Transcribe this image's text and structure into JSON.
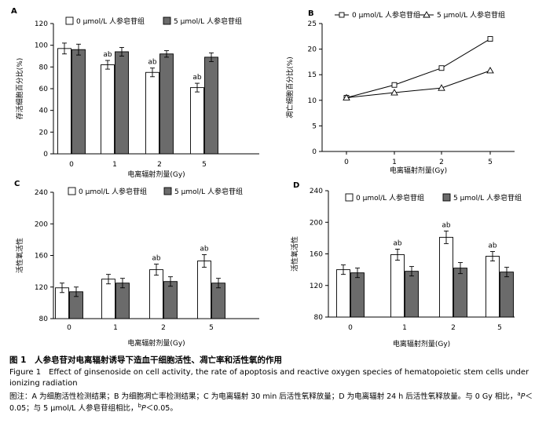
{
  "chart_data": [
    {
      "panel": "A",
      "type": "bar",
      "categories": [
        "0",
        "1",
        "2",
        "5"
      ],
      "series": [
        {
          "name": "0 μmol/L 人参皂苷组",
          "values": [
            97,
            82,
            75,
            61
          ],
          "errors": [
            5,
            4,
            4,
            4
          ],
          "fill": "#ffffff"
        },
        {
          "name": "5 μmol/L 人参皂苷组",
          "values": [
            96,
            94,
            92,
            89
          ],
          "errors": [
            5,
            4,
            3,
            4
          ],
          "fill": "#6b6b6b"
        }
      ],
      "annotations": [
        {
          "category": "1",
          "series": 0,
          "text": "ab"
        },
        {
          "category": "2",
          "series": 0,
          "text": "ab"
        },
        {
          "category": "5",
          "series": 0,
          "text": "ab"
        }
      ],
      "xlabel": "电离辐射剂量(Gy)",
      "ylabel": "存活细胞百分比(%)",
      "ylim": [
        0,
        120
      ],
      "yticks": [
        "0",
        "20",
        "40",
        "60",
        "80",
        "100",
        "120"
      ],
      "legend": "top"
    },
    {
      "panel": "B",
      "type": "line",
      "categories": [
        "0",
        "1",
        "2",
        "5"
      ],
      "series": [
        {
          "name": "0 μmol/L 人参皂苷组",
          "values": [
            10.5,
            13.0,
            16.3,
            22.0
          ],
          "marker": "square"
        },
        {
          "name": "5 μmol/L 人参皂苷组",
          "values": [
            10.5,
            11.5,
            12.4,
            15.8
          ],
          "marker": "triangle"
        }
      ],
      "xlabel": "电离辐射剂量(Gy)",
      "ylabel": "凋亡细胞百分比(%)",
      "ylim": [
        0,
        25
      ],
      "yticks": [
        "0",
        "5",
        "10",
        "15",
        "20",
        "25"
      ],
      "legend": "top"
    },
    {
      "panel": "C",
      "type": "bar",
      "categories": [
        "0",
        "1",
        "2",
        "5"
      ],
      "series": [
        {
          "name": "0 μmol/L 人参皂苷组",
          "values": [
            119,
            130,
            142,
            153
          ],
          "errors": [
            6,
            6,
            7,
            8
          ],
          "fill": "#ffffff"
        },
        {
          "name": "5 μmol/L 人参皂苷组",
          "values": [
            114,
            125,
            127,
            125
          ],
          "errors": [
            6,
            6,
            6,
            6
          ],
          "fill": "#6b6b6b"
        }
      ],
      "annotations": [
        {
          "category": "2",
          "series": 0,
          "text": "ab"
        },
        {
          "category": "5",
          "series": 0,
          "text": "ab"
        }
      ],
      "xlabel": "电离辐射剂量(Gy)",
      "ylabel": "活性氧活性",
      "ylim": [
        80,
        240
      ],
      "yticks": [
        "80",
        "120",
        "160",
        "200",
        "240"
      ],
      "legend": "top"
    },
    {
      "panel": "D",
      "type": "bar",
      "categories": [
        "0",
        "1",
        "2",
        "5"
      ],
      "series": [
        {
          "name": "0 μmol/L 人参皂苷组",
          "values": [
            140,
            159,
            181,
            157
          ],
          "errors": [
            6,
            7,
            8,
            6
          ],
          "fill": "#ffffff"
        },
        {
          "name": "5 μmol/L 人参皂苷组",
          "values": [
            136,
            138,
            142,
            137
          ],
          "errors": [
            6,
            6,
            7,
            6
          ],
          "fill": "#6b6b6b"
        }
      ],
      "annotations": [
        {
          "category": "1",
          "series": 0,
          "text": "ab"
        },
        {
          "category": "2",
          "series": 0,
          "text": "ab"
        },
        {
          "category": "5",
          "series": 0,
          "text": "ab"
        }
      ],
      "xlabel": "电离辐射剂量(Gy)",
      "ylabel": "活性氧活性",
      "ylim": [
        80,
        240
      ],
      "yticks": [
        "80",
        "120",
        "160",
        "200",
        "240"
      ],
      "legend": "top"
    }
  ],
  "caption": {
    "title_cn": "图 1　人参皂苷对电离辐射诱导下造血干细胞活性、凋亡率和活性氧的作用",
    "title_en": "Figure 1　Effect of ginsenoside on cell activity, the rate of apoptosis and reactive oxygen species of hematopoietic stem cells under ionizing radiation",
    "note_part1": "图注：A 为细胞活性检测结果；B 为细胞凋亡率检测结果；C 为电离辐射 30 min 后活性氧释放量；D 为电离辐射 24 h 后活性氧释放量。与 0 Gy 相比，",
    "note_sup_a": "a",
    "note_p1": "P＜0.05；与 5 μmol/L 人参皂苷组相比，",
    "note_sup_b": "b",
    "note_p2": "P＜0.05。"
  }
}
